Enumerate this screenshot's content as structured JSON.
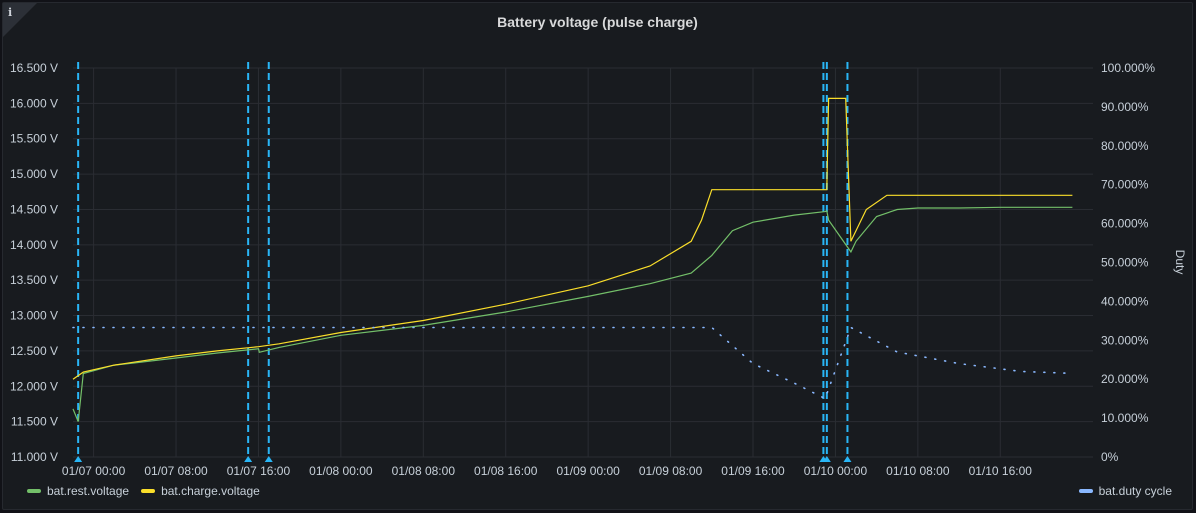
{
  "panel": {
    "title": "Battery voltage (pulse charge)",
    "info_icon": "info-icon"
  },
  "chart_data": {
    "type": "line",
    "title": "Battery voltage (pulse charge)",
    "xlabel": "",
    "ylabel": "",
    "y2label": "Duty",
    "grid": true,
    "legend_position": "bottom",
    "x_start": "01/06 22:00",
    "x_ticks": [
      "01/07 00:00",
      "01/07 08:00",
      "01/07 16:00",
      "01/08 00:00",
      "01/08 08:00",
      "01/08 16:00",
      "01/09 00:00",
      "01/09 08:00",
      "01/09 16:00",
      "01/10 00:00",
      "01/10 08:00",
      "01/10 16:00"
    ],
    "ylim": [
      11.0,
      16.5
    ],
    "y_ticks": [
      "11.000 V",
      "11.500 V",
      "12.000 V",
      "12.500 V",
      "13.000 V",
      "13.500 V",
      "14.000 V",
      "14.500 V",
      "15.000 V",
      "15.500 V",
      "16.000 V",
      "16.500 V"
    ],
    "y2lim": [
      0,
      100
    ],
    "y2_ticks": [
      "0%",
      "10.000%",
      "20.000%",
      "30.000%",
      "40.000%",
      "50.000%",
      "60.000%",
      "70.000%",
      "80.000%",
      "90.000%",
      "100.000%"
    ],
    "series": [
      {
        "name": "bat.rest.voltage",
        "axis": "left",
        "color": "#73bf69",
        "points": [
          [
            "01/06 22:00",
            11.68
          ],
          [
            "01/06 22:30",
            11.5
          ],
          [
            "01/06 23:00",
            12.18
          ],
          [
            "01/07 02:00",
            12.3
          ],
          [
            "01/07 04:00",
            12.33
          ],
          [
            "01/07 08:00",
            12.4
          ],
          [
            "01/07 12:00",
            12.47
          ],
          [
            "01/07 16:00",
            12.53
          ],
          [
            "01/07 16:05",
            12.48
          ],
          [
            "01/07 18:00",
            12.55
          ],
          [
            "01/08 00:00",
            12.72
          ],
          [
            "01/08 08:00",
            12.86
          ],
          [
            "01/08 16:00",
            13.05
          ],
          [
            "01/09 00:00",
            13.27
          ],
          [
            "01/09 06:00",
            13.45
          ],
          [
            "01/09 10:00",
            13.6
          ],
          [
            "01/09 12:00",
            13.85
          ],
          [
            "01/09 14:00",
            14.2
          ],
          [
            "01/09 16:00",
            14.32
          ],
          [
            "01/09 20:00",
            14.42
          ],
          [
            "01/09 23:00",
            14.47
          ],
          [
            "01/09 23:10",
            14.48
          ],
          [
            "01/09 23:20",
            14.35
          ],
          [
            "01/10 01:30",
            13.9
          ],
          [
            "01/10 02:00",
            14.05
          ],
          [
            "01/10 04:00",
            14.4
          ],
          [
            "01/10 06:00",
            14.5
          ],
          [
            "01/10 08:00",
            14.52
          ],
          [
            "01/10 12:00",
            14.52
          ],
          [
            "01/10 16:00",
            14.53
          ],
          [
            "01/10 23:00",
            14.53
          ]
        ]
      },
      {
        "name": "bat.charge.voltage",
        "axis": "left",
        "color": "#fade2a",
        "points": [
          [
            "01/06 22:00",
            12.1
          ],
          [
            "01/06 23:00",
            12.2
          ],
          [
            "01/07 02:00",
            12.3
          ],
          [
            "01/07 08:00",
            12.43
          ],
          [
            "01/07 12:00",
            12.5
          ],
          [
            "01/07 16:00",
            12.56
          ],
          [
            "01/07 18:00",
            12.6
          ],
          [
            "01/08 00:00",
            12.76
          ],
          [
            "01/08 08:00",
            12.93
          ],
          [
            "01/08 16:00",
            13.16
          ],
          [
            "01/09 00:00",
            13.42
          ],
          [
            "01/09 06:00",
            13.7
          ],
          [
            "01/09 10:00",
            14.05
          ],
          [
            "01/09 11:00",
            14.35
          ],
          [
            "01/09 12:00",
            14.78
          ],
          [
            "01/09 16:00",
            14.78
          ],
          [
            "01/09 20:00",
            14.78
          ],
          [
            "01/09 23:10",
            14.78
          ],
          [
            "01/09 23:20",
            16.07
          ],
          [
            "01/10 01:00",
            16.07
          ],
          [
            "01/10 01:30",
            14.05
          ],
          [
            "01/10 03:00",
            14.5
          ],
          [
            "01/10 05:00",
            14.7
          ],
          [
            "01/10 12:00",
            14.7
          ],
          [
            "01/10 23:00",
            14.7
          ]
        ]
      },
      {
        "name": "bat.duty cycle",
        "axis": "right",
        "color": "#8ab8ff",
        "style": "dotted",
        "points": [
          [
            "01/06 22:00",
            33.3
          ],
          [
            "01/09 12:00",
            33.3
          ],
          [
            "01/09 16:00",
            24
          ],
          [
            "01/09 20:00",
            19
          ],
          [
            "01/09 23:00",
            15
          ],
          [
            "01/10 01:30",
            33.3
          ],
          [
            "01/10 06:00",
            27
          ],
          [
            "01/10 12:00",
            24
          ],
          [
            "01/10 18:00",
            22
          ],
          [
            "01/10 23:00",
            21.5
          ]
        ]
      }
    ],
    "event_markers": {
      "color": "#29b6f6",
      "times": [
        "01/06 22:30",
        "01/07 15:00",
        "01/07 17:00",
        "01/09 22:50",
        "01/09 23:10",
        "01/10 01:10"
      ]
    }
  },
  "legend": {
    "items": [
      {
        "label": "bat.rest.voltage",
        "color": "#73bf69"
      },
      {
        "label": "bat.charge.voltage",
        "color": "#fade2a"
      }
    ],
    "right_item": {
      "label": "bat.duty cycle",
      "color": "#8ab8ff"
    }
  }
}
